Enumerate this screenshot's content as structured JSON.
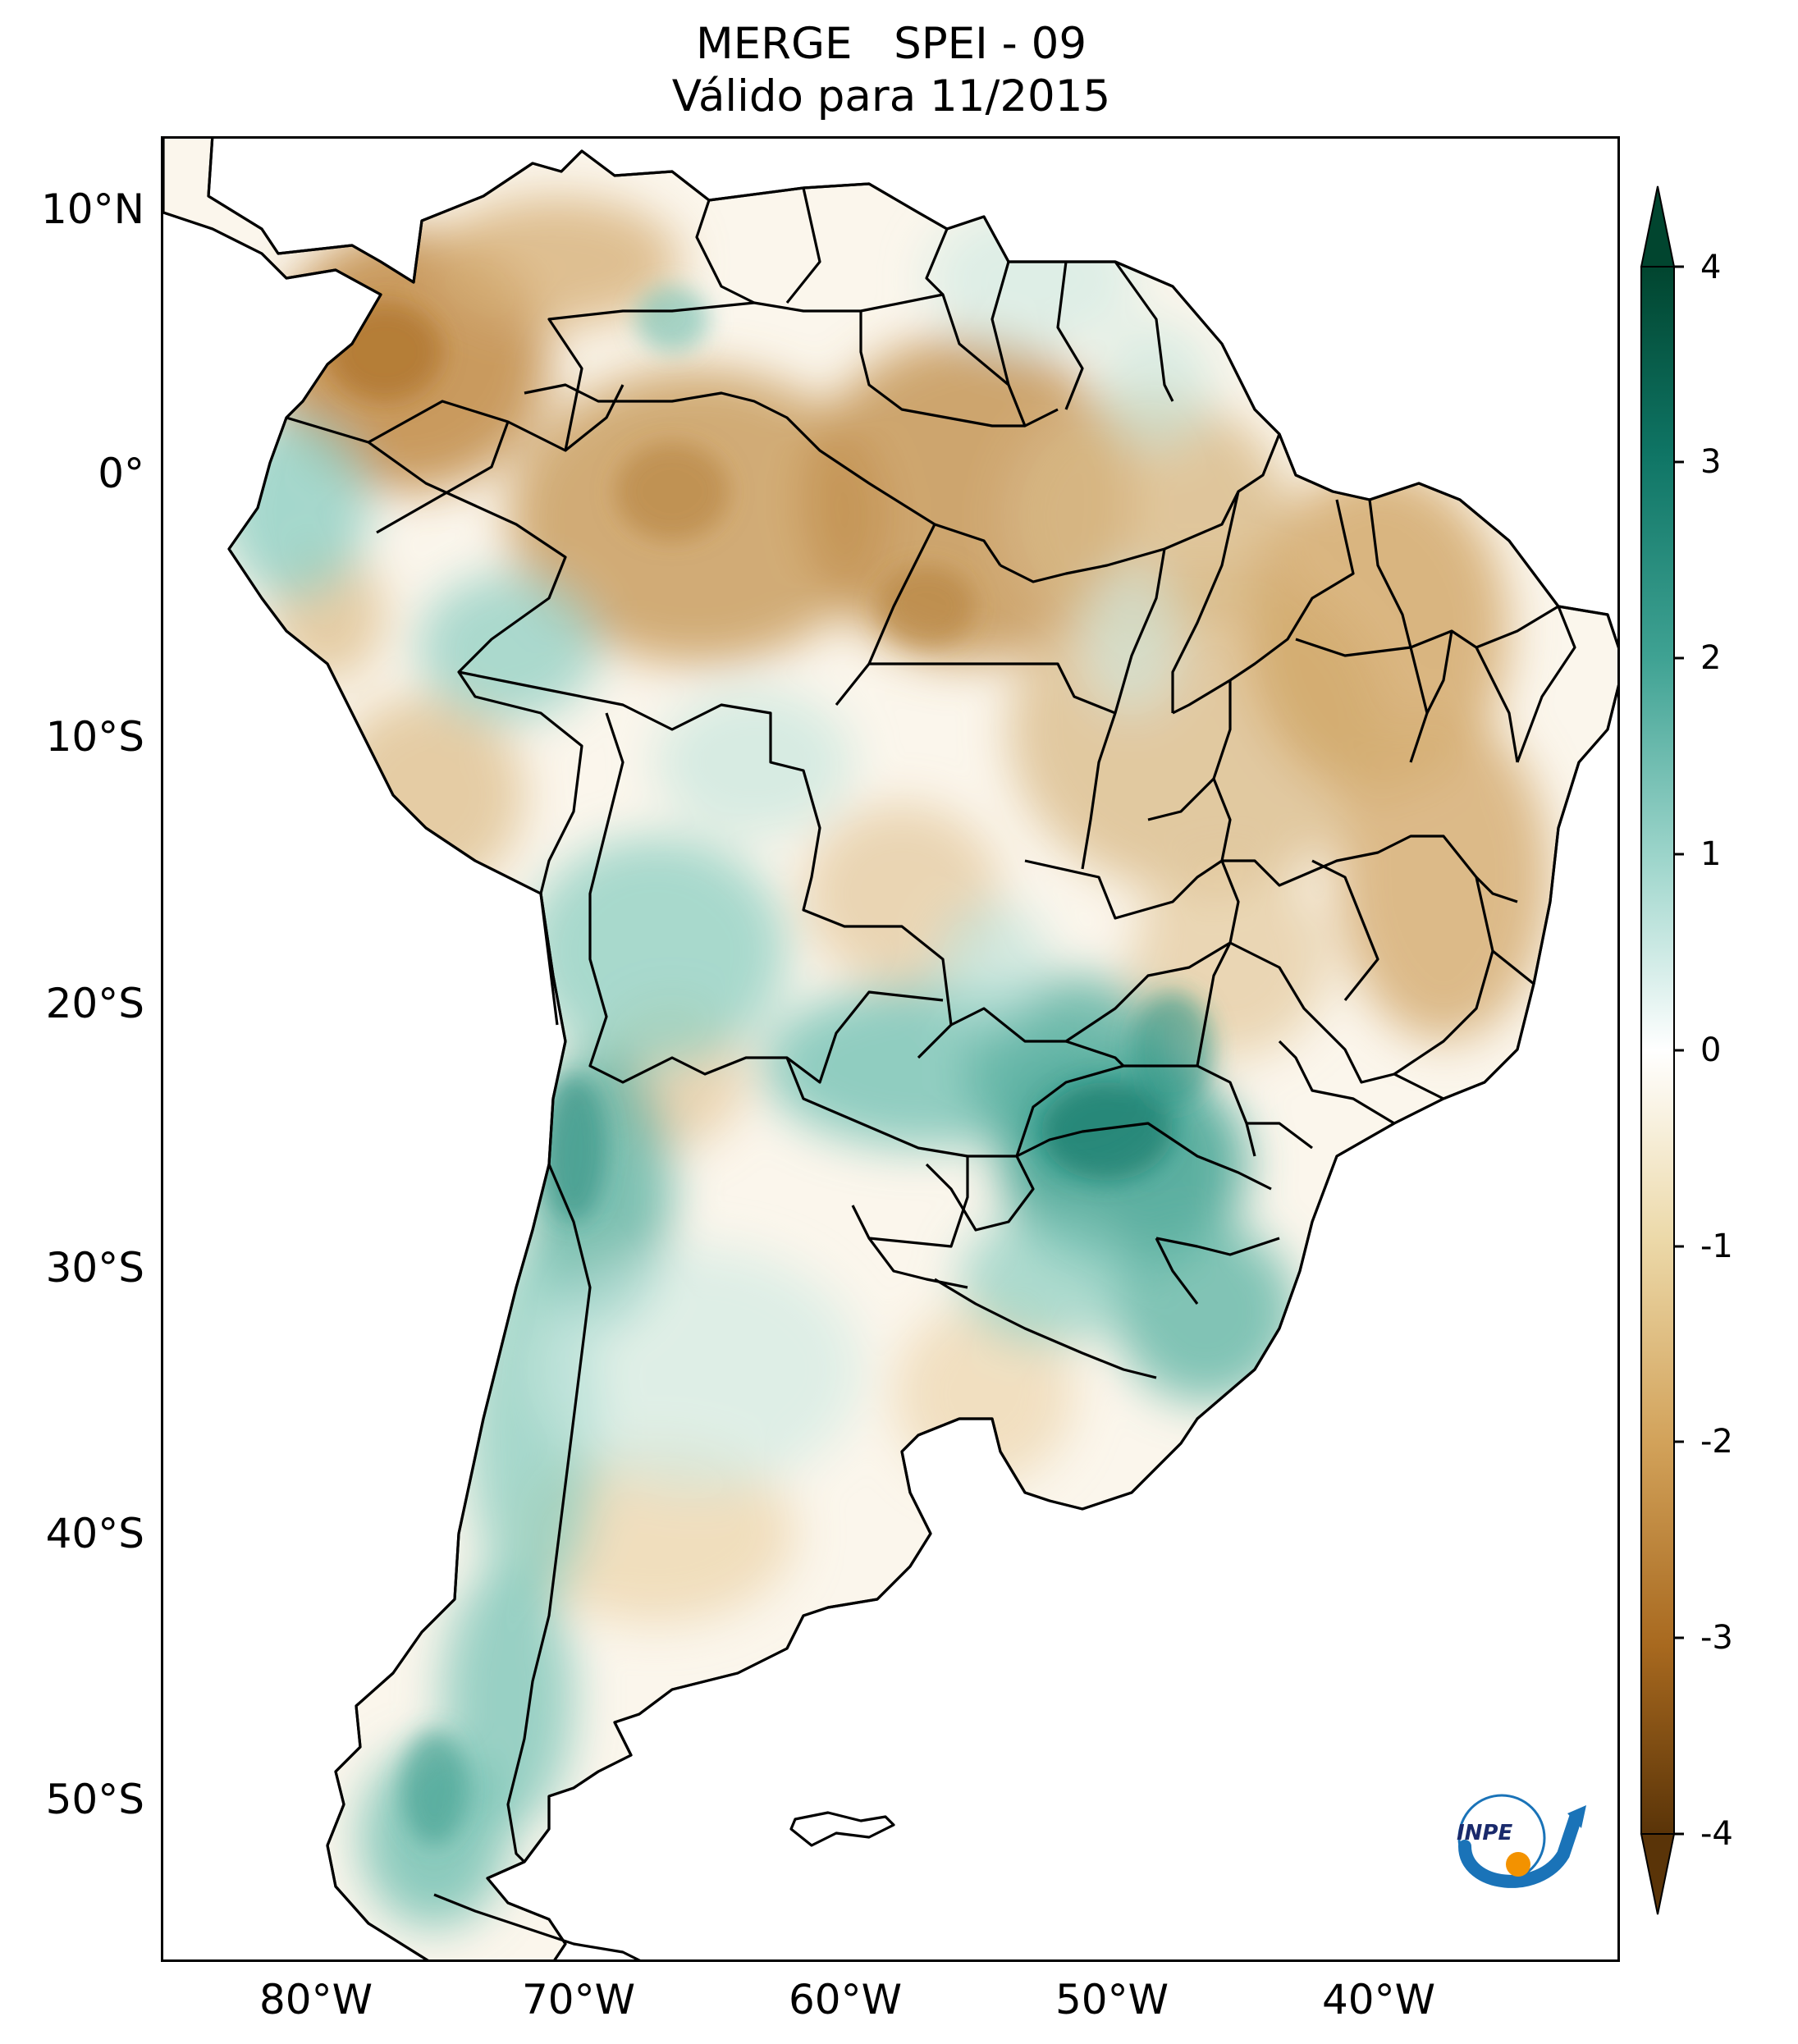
{
  "title": {
    "line1": "MERGE   SPEI - 09",
    "line2": "Válido para 11/2015"
  },
  "axes": {
    "lat_labels": [
      "10°N",
      "0°",
      "10°S",
      "20°S",
      "30°S",
      "40°S",
      "50°S"
    ],
    "lon_labels": [
      "80°W",
      "70°W",
      "60°W",
      "50°W",
      "40°W"
    ]
  },
  "colorbar": {
    "ticks": [
      "4",
      "3",
      "2",
      "1",
      "0",
      "-1",
      "-2",
      "-3",
      "-4"
    ],
    "colors": {
      "max": "#01452f",
      "strong_wet": "#0f7565",
      "wet": "#3fa293",
      "mild_wet": "#9fd6cc",
      "neutral": "#ffffff",
      "mild_dry": "#ecd9a9",
      "dry": "#d2a25a",
      "strong_dry": "#a8691f",
      "min": "#5a3408"
    }
  },
  "logo": {
    "text": "INPE"
  },
  "colors": {
    "border": "#000000",
    "wet": "#7cc5b7",
    "dry": "#d9b37b"
  }
}
